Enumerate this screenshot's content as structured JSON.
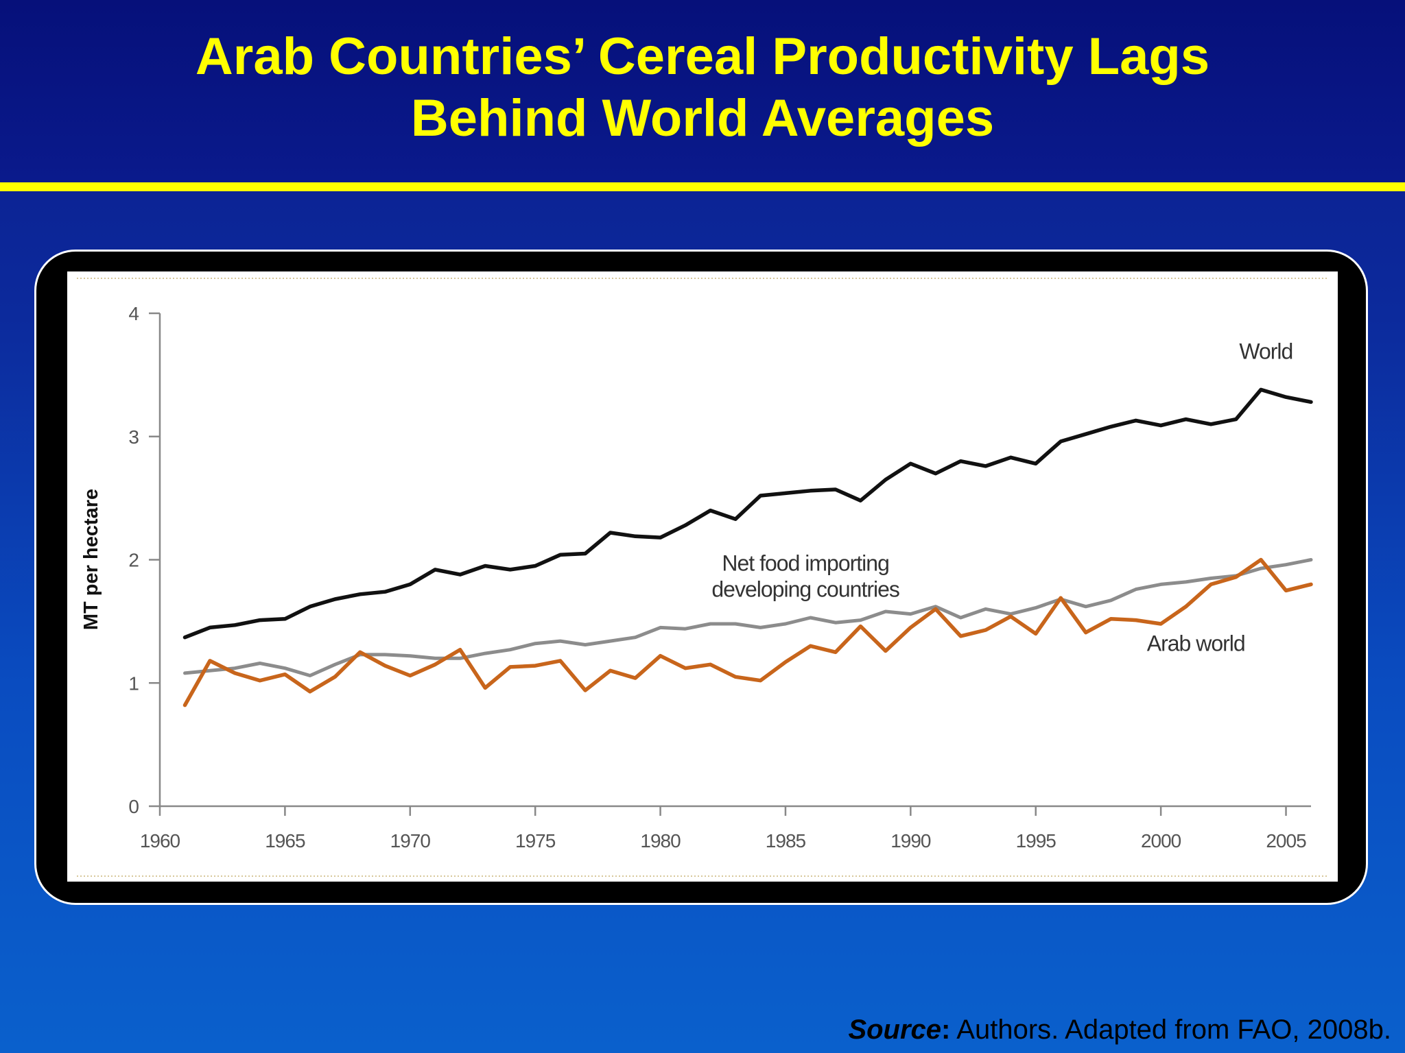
{
  "slide": {
    "title_line1": "Arab Countries’ Cereal Productivity Lags",
    "title_line2": "Behind World Averages",
    "source_label": "Source",
    "source_colon": ":",
    "source_text": " Authors. Adapted from FAO, 2008b.",
    "background_color": "#0a3cb0",
    "accent_color": "#ffff00"
  },
  "chart_data": {
    "type": "line",
    "title": "",
    "xlabel": "",
    "ylabel": "MT per hectare",
    "xlim": [
      1960,
      2006
    ],
    "ylim": [
      0,
      4
    ],
    "x_ticks": [
      1960,
      1965,
      1970,
      1975,
      1980,
      1985,
      1990,
      1995,
      2000,
      2005
    ],
    "y_ticks": [
      0,
      1,
      2,
      3,
      4
    ],
    "grid": false,
    "legend": "none",
    "x": [
      1961,
      1962,
      1963,
      1964,
      1965,
      1966,
      1967,
      1968,
      1969,
      1970,
      1971,
      1972,
      1973,
      1974,
      1975,
      1976,
      1977,
      1978,
      1979,
      1980,
      1981,
      1982,
      1983,
      1984,
      1985,
      1986,
      1987,
      1988,
      1989,
      1990,
      1991,
      1992,
      1993,
      1994,
      1995,
      1996,
      1997,
      1998,
      1999,
      2000,
      2001,
      2002,
      2003,
      2004,
      2005,
      2006
    ],
    "series": [
      {
        "name": "World",
        "label_lines": [
          "World"
        ],
        "color": "#111111",
        "values": [
          1.37,
          1.45,
          1.47,
          1.51,
          1.52,
          1.62,
          1.68,
          1.72,
          1.74,
          1.8,
          1.92,
          1.88,
          1.95,
          1.92,
          1.95,
          2.04,
          2.05,
          2.22,
          2.19,
          2.18,
          2.28,
          2.4,
          2.33,
          2.52,
          2.54,
          2.56,
          2.57,
          2.48,
          2.65,
          2.78,
          2.7,
          2.8,
          2.76,
          2.83,
          2.78,
          2.96,
          3.02,
          3.08,
          3.13,
          3.09,
          3.14,
          3.1,
          3.14,
          3.38,
          3.32,
          3.28
        ]
      },
      {
        "name": "Net food importing developing countries",
        "label_lines": [
          "Net food importing",
          "developing countries"
        ],
        "color": "#8c8c8c",
        "values": [
          1.08,
          1.1,
          1.12,
          1.16,
          1.12,
          1.06,
          1.15,
          1.23,
          1.23,
          1.22,
          1.2,
          1.2,
          1.24,
          1.27,
          1.32,
          1.34,
          1.31,
          1.34,
          1.37,
          1.45,
          1.44,
          1.48,
          1.48,
          1.45,
          1.48,
          1.53,
          1.49,
          1.51,
          1.58,
          1.56,
          1.62,
          1.53,
          1.6,
          1.56,
          1.61,
          1.68,
          1.62,
          1.67,
          1.76,
          1.8,
          1.82,
          1.85,
          1.87,
          1.93,
          1.96,
          2.0
        ]
      },
      {
        "name": "Arab world",
        "label_lines": [
          "Arab world"
        ],
        "color": "#c8651b",
        "values": [
          0.82,
          1.18,
          1.08,
          1.02,
          1.07,
          0.93,
          1.05,
          1.25,
          1.14,
          1.06,
          1.15,
          1.27,
          0.96,
          1.13,
          1.14,
          1.18,
          0.94,
          1.1,
          1.04,
          1.22,
          1.12,
          1.15,
          1.05,
          1.02,
          1.17,
          1.3,
          1.25,
          1.46,
          1.26,
          1.45,
          1.6,
          1.38,
          1.43,
          1.54,
          1.4,
          1.69,
          1.41,
          1.52,
          1.51,
          1.48,
          1.62,
          1.8,
          1.86,
          2.0,
          1.75,
          1.8
        ]
      }
    ]
  }
}
